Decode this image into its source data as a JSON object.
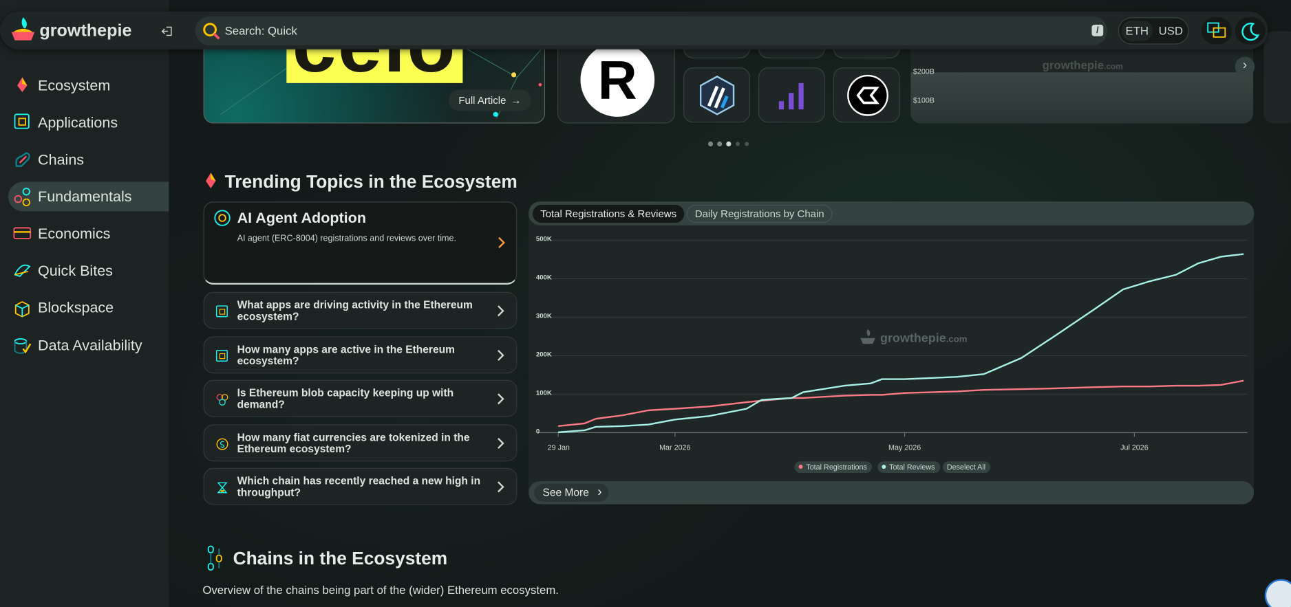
{
  "header": {
    "logo": "growthepie",
    "search": "Search: Quick",
    "search_key": "/",
    "currencies": [
      "ETH",
      "USD"
    ]
  },
  "sidebar": {
    "items": [
      "Ecosystem",
      "Applications",
      "Chains",
      "Fundamentals",
      "Economics",
      "Quick Bites",
      "Blockspace",
      "Data Availability"
    ]
  },
  "carousel": {
    "article_title": "celo",
    "article_button": "Full Article",
    "logo_letter": "R",
    "mini_chart_labels": [
      "$200B",
      "$100B"
    ],
    "watermark": "growthepie",
    "watermark_suffix": ".com"
  },
  "trending": {
    "title": "Trending Topics in the Ecosystem",
    "featured": {
      "title": "AI Agent Adoption",
      "description": "AI agent (ERC-8004) registrations and reviews over time."
    },
    "questions": [
      "What apps are driving activity in the Ethereum ecosystem?",
      "How many apps are active in the Ethereum ecosystem?",
      "Is Ethereum blob capacity keeping up with demand?",
      "How many fiat currencies are tokenized in the Ethereum ecosystem?",
      "Which chain has recently reached a new high in throughput?"
    ],
    "tabs": [
      "Total Registrations & Reviews",
      "Daily Registrations by Chain"
    ],
    "see_more": "See More",
    "chart": {
      "type": "line",
      "watermark": "growthepie",
      "watermark_suffix": ".com",
      "x": [
        "2026-01-29",
        "2026-02-05",
        "2026-02-08",
        "2026-02-15",
        "2026-02-22",
        "2026-03-01",
        "2026-03-10",
        "2026-03-20",
        "2026-03-24",
        "2026-04-01",
        "2026-04-04",
        "2026-04-15",
        "2026-04-22",
        "2026-04-25",
        "2026-05-01",
        "2026-05-15",
        "2026-05-22",
        "2026-06-01",
        "2026-06-10",
        "2026-06-20",
        "2026-06-28",
        "2026-07-05",
        "2026-07-12",
        "2026-07-18",
        "2026-07-24",
        "2026-07-30"
      ],
      "series": [
        {
          "name": "Total Registrations",
          "color": "#ff7a85",
          "values": [
            17000,
            24000,
            36000,
            45000,
            58000,
            62000,
            68000,
            79000,
            83000,
            90000,
            90000,
            96000,
            98000,
            98000,
            103000,
            107000,
            111000,
            113000,
            115000,
            118000,
            120000,
            120000,
            122000,
            122000,
            124000,
            135000
          ]
        },
        {
          "name": "Total Reviews",
          "color": "#a8f0e6",
          "values": [
            1000,
            6000,
            15000,
            17000,
            21000,
            34000,
            43000,
            62000,
            85000,
            90000,
            105000,
            122000,
            128000,
            139000,
            139000,
            145000,
            152000,
            194000,
            252000,
            318000,
            372000,
            393000,
            410000,
            440000,
            457000,
            464000
          ]
        }
      ],
      "xlim": [
        "2026-01-29",
        "2026-07-31"
      ],
      "xticks": [
        {
          "value": "2026-01-29",
          "label": "29 Jan"
        },
        {
          "value": "2026-03-01",
          "label": "Mar 2026"
        },
        {
          "value": "2026-05-01",
          "label": "May 2026"
        },
        {
          "value": "2026-07-01",
          "label": "Jul 2026"
        }
      ],
      "ylim": [
        0,
        500000
      ],
      "yticks": [
        0,
        {
          "value": 100000,
          "label": "100K"
        },
        {
          "value": 200000,
          "label": "200K"
        },
        {
          "value": 300000,
          "label": "300K"
        },
        {
          "value": 400000,
          "label": "400K"
        },
        {
          "value": 500000,
          "label": "500K"
        }
      ],
      "grid": true,
      "deselect": "Deselect All"
    }
  },
  "chains": {
    "title": "Chains in the Ecosystem",
    "description": "Overview of the chains being part of the (wider) Ethereum ecosystem."
  }
}
